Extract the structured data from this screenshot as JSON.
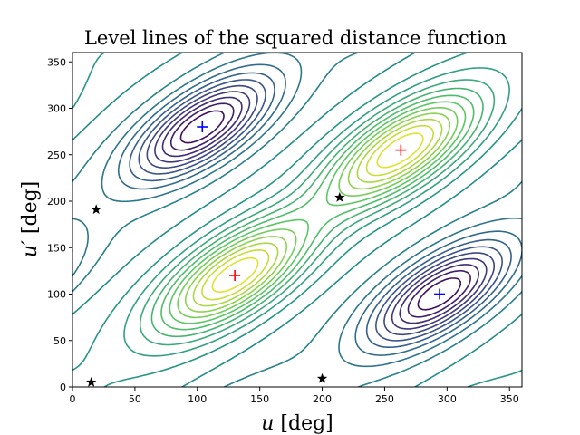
{
  "chart_data": {
    "type": "contour",
    "title": "Level lines of the squared distance function",
    "xlabel": {
      "symbol": "u",
      "unit": "[deg]"
    },
    "ylabel": {
      "symbol": "u′",
      "unit": "[deg]"
    },
    "xlim": [
      0,
      360
    ],
    "ylim": [
      0,
      360
    ],
    "x_ticks": [
      0,
      50,
      100,
      150,
      200,
      250,
      300,
      350
    ],
    "y_ticks": [
      0,
      50,
      100,
      150,
      200,
      250,
      300,
      350
    ],
    "grid": false,
    "colormap": "viridis",
    "contour_levels": 22,
    "markers": {
      "minima": {
        "color": "#0000ff",
        "symbol": "plus",
        "points": [
          [
            104,
            280
          ],
          [
            294,
            100
          ]
        ]
      },
      "maxima": {
        "color": "#ff0000",
        "symbol": "plus",
        "points": [
          [
            130,
            120
          ],
          [
            263,
            255
          ]
        ]
      },
      "saddles": {
        "color": "#000000",
        "symbol": "star",
        "points": [
          [
            19,
            191
          ],
          [
            214,
            204
          ],
          [
            15,
            5
          ],
          [
            200,
            9
          ]
        ]
      }
    }
  }
}
